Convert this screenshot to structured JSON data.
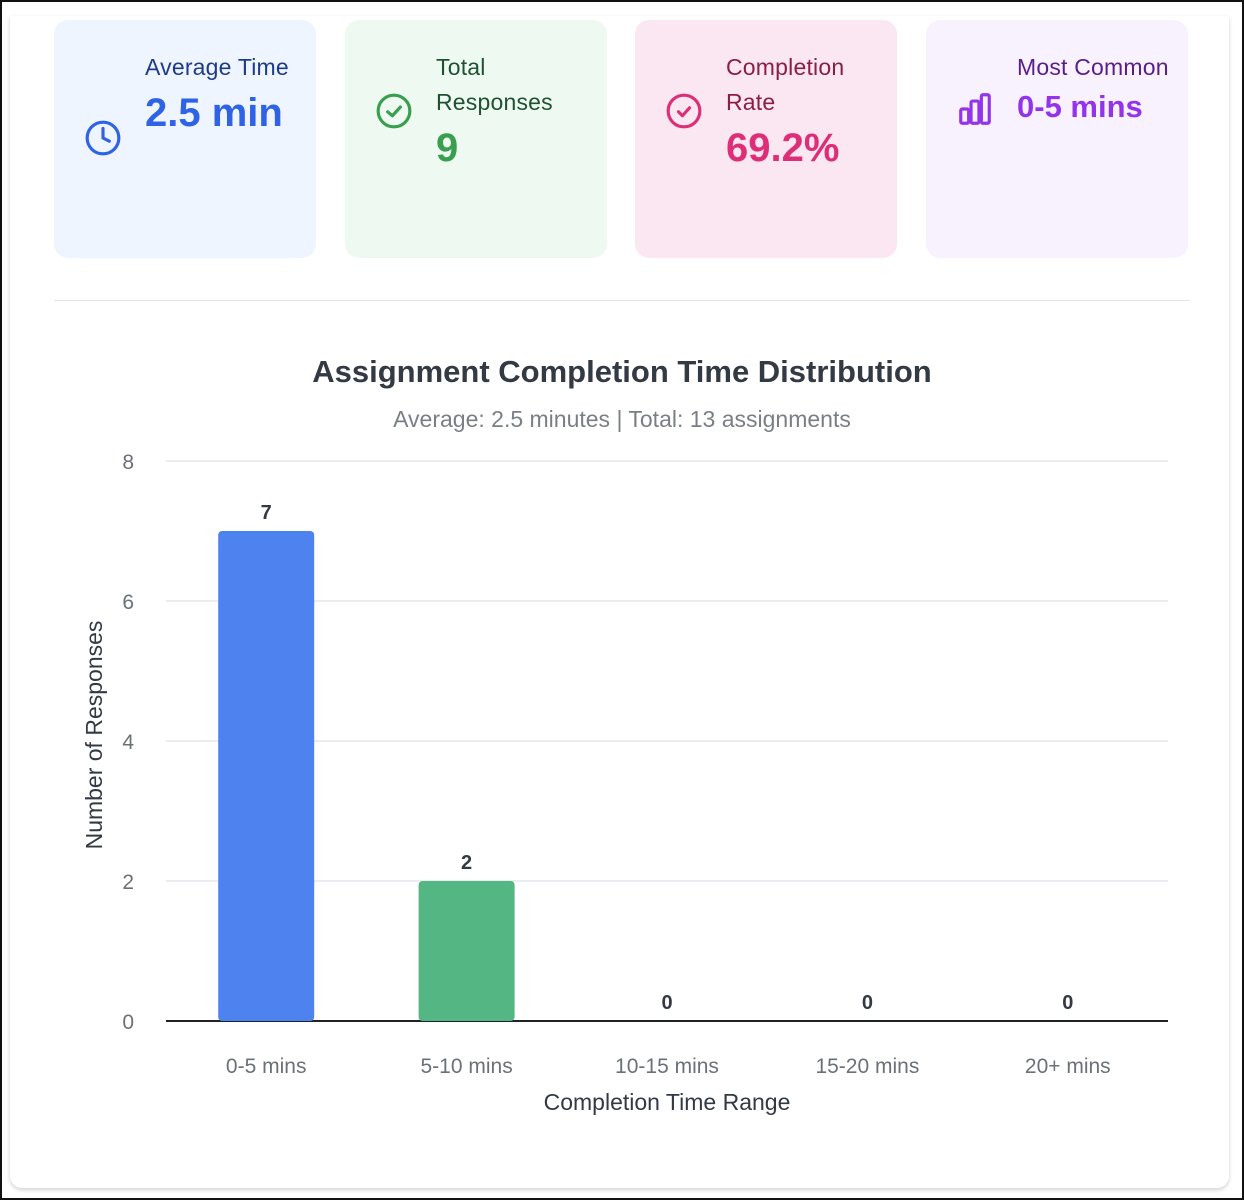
{
  "stats": [
    {
      "label": "Average Time",
      "value": "2.5 min",
      "icon": "clock-icon",
      "bg": "#eef5fe",
      "label_color": "#1e3a8a",
      "value_color": "#2f63e6",
      "icon_color": "#2f63e6"
    },
    {
      "label": "Total Responses",
      "value": "9",
      "icon": "check-circle-icon",
      "bg": "#eefaf1",
      "label_color": "#1f5133",
      "value_color": "#3a9e4f",
      "icon_color": "#3a9e4f"
    },
    {
      "label": "Completion Rate",
      "value": "69.2%",
      "icon": "check-circle-icon",
      "bg": "#fbe7f1",
      "label_color": "#8a1f45",
      "value_color": "#dc2f78",
      "icon_color": "#dc2f78"
    },
    {
      "label": "Most Common",
      "value": "0-5 mins",
      "icon": "bar-chart-icon",
      "bg": "#f7f2fd",
      "label_color": "#5a1e8a",
      "value_color": "#9333ea",
      "icon_color": "#9333ea"
    }
  ],
  "chart_data": {
    "type": "bar",
    "title": "Assignment Completion Time Distribution",
    "subtitle": "Average: 2.5 minutes | Total: 13 assignments",
    "categories": [
      "0-5 mins",
      "5-10 mins",
      "10-15 mins",
      "15-20 mins",
      "20+ mins"
    ],
    "values": [
      7,
      2,
      0,
      0,
      0
    ],
    "colors": [
      "#4e82ee",
      "#53b683",
      "#f2a43a",
      "#ef5c5c",
      "#8b5cf6"
    ],
    "xlabel": "Completion Time Range",
    "ylabel": "Number of Responses",
    "ylim": [
      0,
      8
    ],
    "yticks": [
      "0",
      "2",
      "4",
      "6",
      "8"
    ],
    "grid": true,
    "data_labels": [
      "7",
      "2",
      "0",
      "0",
      "0"
    ]
  }
}
